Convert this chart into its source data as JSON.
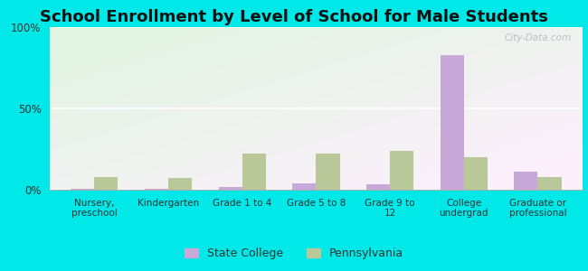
{
  "title": "School Enrollment by Level of School for Male Students",
  "categories": [
    "Nursery,\npreschool",
    "Kindergarten",
    "Grade 1 to 4",
    "Grade 5 to 8",
    "Grade 9 to\n12",
    "College\nundergrad",
    "Graduate or\nprofessional"
  ],
  "state_college": [
    0.5,
    0.5,
    1.5,
    4.0,
    3.5,
    83.0,
    11.0
  ],
  "pennsylvania": [
    8.0,
    7.0,
    22.0,
    22.0,
    24.0,
    20.0,
    8.0
  ],
  "state_college_color": "#c8a8d8",
  "pennsylvania_color": "#b8c898",
  "outer_bg": "#00e8e8",
  "plot_bg": "#e8f5e0",
  "ylim": [
    0,
    100
  ],
  "yticks": [
    0,
    50,
    100
  ],
  "ytick_labels": [
    "0%",
    "50%",
    "100%"
  ],
  "bar_width": 0.32,
  "legend_labels": [
    "State College",
    "Pennsylvania"
  ],
  "title_fontsize": 13,
  "label_fontsize": 7.5,
  "watermark": "City-Data.com"
}
